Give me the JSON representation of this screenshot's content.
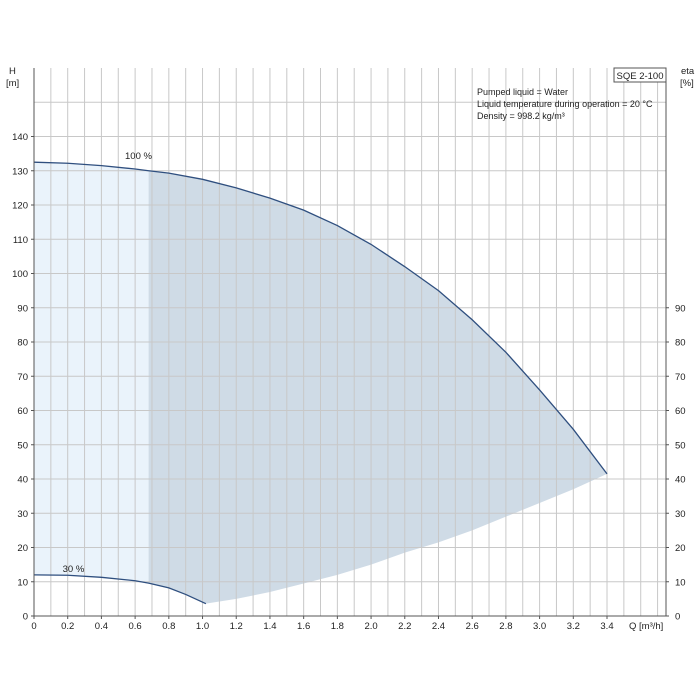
{
  "chart_data": {
    "type": "line",
    "title": "SQE 2-100",
    "xlabel": "Q [m³/h]",
    "ylabel": "H\n[m]",
    "y2label": "eta\n[%]",
    "xlim": [
      0,
      3.75
    ],
    "ylim": [
      0,
      160
    ],
    "y2lim": [
      0,
      160
    ],
    "grid": true,
    "x_ticks": [
      0,
      0.2,
      0.4,
      0.6,
      0.8,
      1.0,
      1.2,
      1.4,
      1.6,
      1.8,
      2.0,
      2.2,
      2.4,
      2.6,
      2.8,
      3.0,
      3.2,
      3.4
    ],
    "x_tick_labels": [
      "0",
      "0.2",
      "0.4",
      "0.6",
      "0.8",
      "1.0",
      "1.2",
      "1.4",
      "1.6",
      "1.8",
      "2.0",
      "2.2",
      "2.4",
      "2.6",
      "2.8",
      "3.0",
      "3.2",
      "3.4"
    ],
    "y_ticks": [
      0,
      10,
      20,
      30,
      40,
      50,
      60,
      70,
      80,
      90,
      100,
      110,
      120,
      130,
      140
    ],
    "y2_ticks": [
      0,
      10,
      20,
      30,
      40,
      50,
      60,
      70,
      80,
      90
    ],
    "info_lines": [
      "Pumped liquid = Water",
      "Liquid temperature during operation = 20 °C",
      "Density = 998.2 kg/m³"
    ],
    "series": [
      {
        "name": "100 %",
        "x": [
          0,
          0.2,
          0.4,
          0.6,
          0.68,
          0.8,
          1.0,
          1.2,
          1.4,
          1.6,
          1.8,
          2.0,
          2.2,
          2.4,
          2.6,
          2.8,
          3.0,
          3.2,
          3.4
        ],
        "y": [
          132.5,
          132.2,
          131.5,
          130.5,
          130.0,
          129.3,
          127.5,
          125.0,
          122.0,
          118.5,
          114.0,
          108.5,
          102.0,
          95.0,
          86.5,
          77.0,
          66.0,
          54.5,
          41.5
        ]
      },
      {
        "name": "30 %",
        "x": [
          0,
          0.2,
          0.4,
          0.6,
          0.68,
          0.8,
          0.9,
          1.02
        ],
        "y": [
          12.0,
          11.9,
          11.3,
          10.3,
          9.6,
          8.2,
          6.3,
          3.6
        ]
      }
    ],
    "lower_boundary": {
      "x": [
        1.02,
        1.2,
        1.4,
        1.6,
        1.8,
        2.0,
        2.2,
        2.4,
        2.6,
        2.8,
        3.0,
        3.2,
        3.4
      ],
      "y": [
        3.6,
        5.0,
        7.0,
        9.5,
        12.0,
        15.0,
        18.5,
        21.5,
        25.0,
        29.0,
        33.0,
        37.0,
        41.5
      ]
    },
    "shaded_region_split_x": 0.68,
    "colors": {
      "curve": "#2f4f7f",
      "light_fill": "#eaf3fb",
      "dark_fill": "#cfdbe6"
    }
  }
}
